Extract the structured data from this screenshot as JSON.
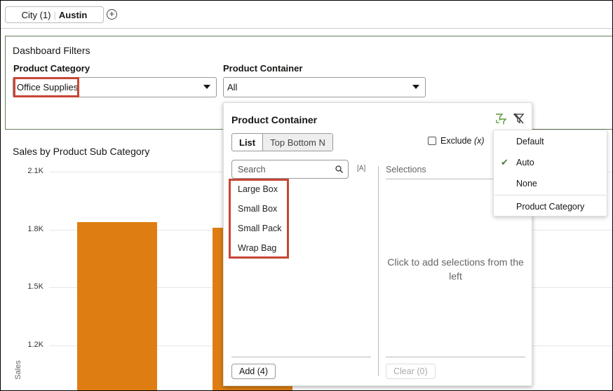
{
  "topbar": {
    "filter_pill": {
      "label": "City (1)",
      "value": "Austin"
    },
    "add_icon": "plus-circle-icon"
  },
  "dashboard_filters": {
    "title": "Dashboard Filters",
    "product_category": {
      "label": "Product Category",
      "value": "Office Supplies"
    },
    "product_container": {
      "label": "Product Container",
      "value": "All"
    }
  },
  "chart_data": {
    "type": "bar",
    "title": "Sales by Product Sub Category",
    "ylabel": "Sales",
    "yticks": [
      "2.1K",
      "1.8K",
      "1.5K",
      "1.2K"
    ],
    "ytick_values": [
      2100,
      1800,
      1500,
      1200
    ],
    "values": [
      1840,
      1810
    ],
    "color": "#de7e12",
    "grid": true
  },
  "popup": {
    "title": "Product Container",
    "tabs": [
      "List",
      "Top Bottom N"
    ],
    "active_tab": "List",
    "exclude_label": "Exclude",
    "exclude_symbol": "(x)",
    "exclude_checked": false,
    "search_placeholder": "Search",
    "case_icon_label": "[A]",
    "items": [
      "Large Box",
      "Small Box",
      "Small Pack",
      "Wrap Bag"
    ],
    "selections_label": "Selections",
    "empty_text": "Click to add selections from the left",
    "add_button": "Add (4)",
    "clear_button": "Clear (0)",
    "icons": [
      "filter-sync-icon",
      "clear-filter-icon"
    ]
  },
  "menu": {
    "items": [
      "Default",
      "Auto",
      "None",
      "Product Category"
    ],
    "checked": "Auto"
  },
  "colors": {
    "highlight": "#c74634",
    "bar": "#de7e12",
    "check": "#4a7a3a"
  }
}
